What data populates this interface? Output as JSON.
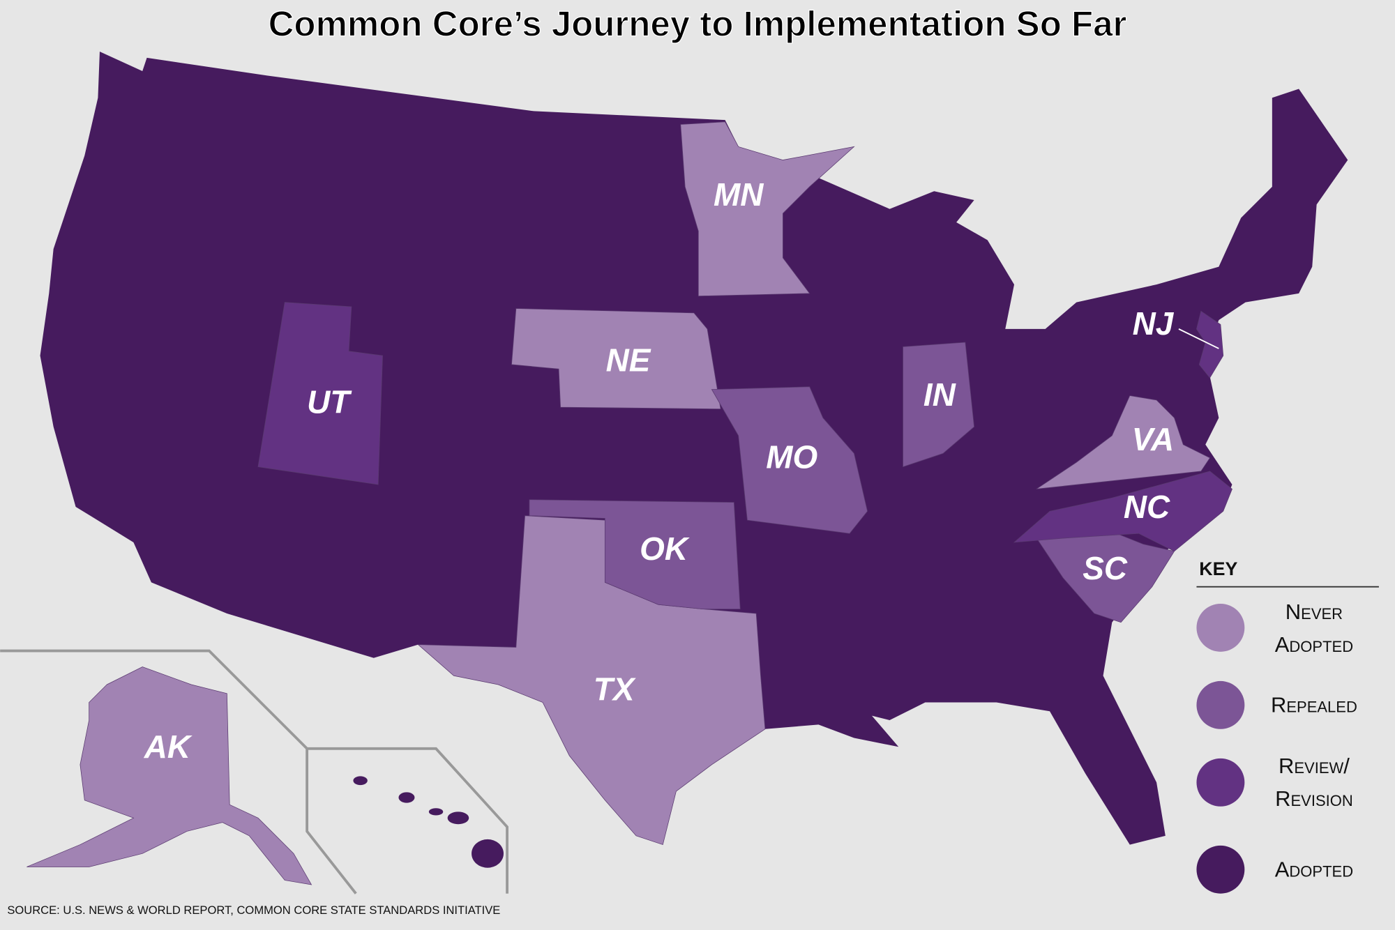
{
  "title": "Common Core’s Journey to Implementation So Far",
  "legend": {
    "title": "KEY",
    "items": [
      {
        "label": "Never Adopted",
        "color": "#a183b3"
      },
      {
        "label": "Repealed",
        "color": "#7c5596"
      },
      {
        "label": "Review/ Revision",
        "color": "#623282"
      },
      {
        "label": "Adopted",
        "color": "#461b5e"
      }
    ]
  },
  "states": [
    {
      "label": "MN",
      "status": 0
    },
    {
      "label": "NE",
      "status": 0
    },
    {
      "label": "TX",
      "status": 0
    },
    {
      "label": "AK",
      "status": 0
    },
    {
      "label": "VA",
      "status": 0
    },
    {
      "label": "OK",
      "status": 1
    },
    {
      "label": "MO",
      "status": 1
    },
    {
      "label": "IN",
      "status": 1
    },
    {
      "label": "SC",
      "status": 1
    },
    {
      "label": "UT",
      "status": 2
    },
    {
      "label": "NC",
      "status": 2
    },
    {
      "label": "NJ",
      "status": 2
    }
  ],
  "source": "SOURCE: U.S. NEWS & WORLD REPORT, COMMON CORE STATE STANDARDS INITIATIVE"
}
